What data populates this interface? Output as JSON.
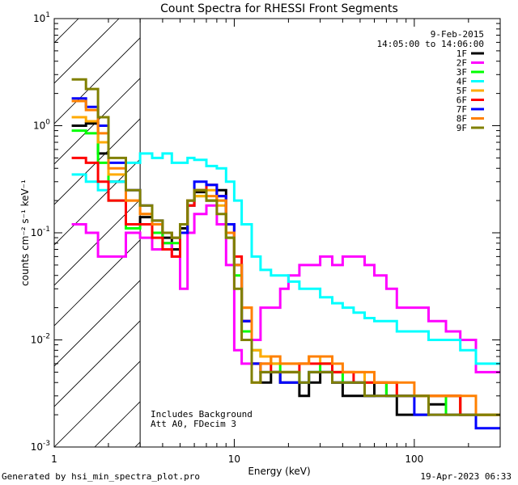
{
  "chart_data": {
    "type": "line",
    "scale": "log-log",
    "title": "Count Spectra for RHESSI Front Segments",
    "xlabel": "Energy (keV)",
    "ylabel": "counts cm⁻² s⁻¹ keV⁻¹",
    "xlim": [
      1.0,
      300
    ],
    "ylim": [
      0.001,
      10
    ],
    "x_ticks": [
      {
        "value": 1,
        "label": "1"
      },
      {
        "value": 10,
        "label": "10"
      },
      {
        "value": 100,
        "label": "100"
      }
    ],
    "y_ticks": [
      {
        "value": 0.001,
        "base": "10",
        "exp": "-3"
      },
      {
        "value": 0.01,
        "base": "10",
        "exp": "-2"
      },
      {
        "value": 0.1,
        "base": "10",
        "exp": "-1"
      },
      {
        "value": 1,
        "base": "10",
        "exp": "0"
      },
      {
        "value": 10,
        "base": "10",
        "exp": "1"
      }
    ],
    "date": "9-Feb-2015",
    "time_range": "14:05:00 to 14:06:00",
    "annotations": [
      "Includes Background",
      "Att A0, FDecim 3"
    ],
    "shaded_region": {
      "x_from": 1.0,
      "x_to": 3.0,
      "style": "diagonal-hatch"
    },
    "series": [
      {
        "name": "1F",
        "color": "#000000",
        "values": [
          1.0,
          1.05,
          0.55,
          0.3,
          0.12,
          0.14,
          0.12,
          0.09,
          0.07,
          0.11,
          0.18,
          0.24,
          0.2,
          0.25,
          0.12,
          0.05,
          0.015,
          0.006,
          0.004,
          0.005,
          0.004,
          0.004,
          0.003,
          0.004,
          0.005,
          0.004,
          0.003,
          0.003,
          0.003,
          0.004,
          0.003,
          0.002,
          0.002,
          0.0025,
          0.003,
          0.002,
          0.002
        ]
      },
      {
        "name": "2F",
        "color": "#ff00ff",
        "values": [
          0.12,
          0.1,
          0.06,
          0.06,
          0.1,
          0.09,
          0.07,
          0.08,
          0.06,
          0.03,
          0.1,
          0.15,
          0.18,
          0.12,
          0.05,
          0.008,
          0.006,
          0.01,
          0.02,
          0.02,
          0.03,
          0.04,
          0.05,
          0.05,
          0.06,
          0.05,
          0.06,
          0.06,
          0.05,
          0.04,
          0.03,
          0.02,
          0.02,
          0.015,
          0.012,
          0.01,
          0.005
        ]
      },
      {
        "name": "3F",
        "color": "#00ff00",
        "values": [
          0.9,
          0.85,
          0.45,
          0.2,
          0.11,
          0.12,
          0.1,
          0.08,
          0.08,
          0.1,
          0.2,
          0.22,
          0.2,
          0.2,
          0.09,
          0.04,
          0.012,
          0.008,
          0.007,
          0.006,
          0.005,
          0.005,
          0.004,
          0.005,
          0.006,
          0.005,
          0.004,
          0.004,
          0.004,
          0.004,
          0.003,
          0.003,
          0.003,
          0.003,
          0.002,
          0.002,
          0.002
        ]
      },
      {
        "name": "4F",
        "color": "#00ffff",
        "values": [
          0.35,
          0.3,
          0.25,
          0.3,
          0.45,
          0.55,
          0.5,
          0.55,
          0.45,
          0.45,
          0.5,
          0.48,
          0.42,
          0.4,
          0.3,
          0.2,
          0.12,
          0.06,
          0.045,
          0.04,
          0.04,
          0.035,
          0.03,
          0.03,
          0.025,
          0.022,
          0.02,
          0.018,
          0.016,
          0.015,
          0.015,
          0.012,
          0.012,
          0.01,
          0.01,
          0.008,
          0.006
        ]
      },
      {
        "name": "5F",
        "color": "#ffaa00",
        "values": [
          1.2,
          1.1,
          0.7,
          0.35,
          0.2,
          0.15,
          0.12,
          0.1,
          0.09,
          0.12,
          0.2,
          0.22,
          0.25,
          0.18,
          0.1,
          0.05,
          0.02,
          0.008,
          0.007,
          0.006,
          0.006,
          0.006,
          0.006,
          0.007,
          0.006,
          0.005,
          0.005,
          0.005,
          0.004,
          0.004,
          0.004,
          0.003,
          0.003,
          0.003,
          0.003,
          0.002,
          0.002
        ]
      },
      {
        "name": "6F",
        "color": "#ff0000",
        "values": [
          0.5,
          0.45,
          0.3,
          0.2,
          0.12,
          0.12,
          0.09,
          0.07,
          0.06,
          0.1,
          0.18,
          0.25,
          0.28,
          0.22,
          0.12,
          0.06,
          0.015,
          0.006,
          0.006,
          0.005,
          0.005,
          0.005,
          0.006,
          0.006,
          0.006,
          0.005,
          0.005,
          0.004,
          0.004,
          0.004,
          0.004,
          0.003,
          0.003,
          0.003,
          0.003,
          0.002,
          0.002
        ]
      },
      {
        "name": "7F",
        "color": "#0000ff",
        "values": [
          1.8,
          1.5,
          1.0,
          0.45,
          0.25,
          0.18,
          0.13,
          0.1,
          0.09,
          0.1,
          0.2,
          0.3,
          0.28,
          0.22,
          0.12,
          0.05,
          0.015,
          0.006,
          0.005,
          0.005,
          0.004,
          0.004,
          0.004,
          0.005,
          0.005,
          0.004,
          0.004,
          0.004,
          0.003,
          0.003,
          0.003,
          0.003,
          0.002,
          0.002,
          0.002,
          0.002,
          0.0015
        ]
      },
      {
        "name": "8F",
        "color": "#ff8000",
        "values": [
          1.7,
          1.4,
          0.85,
          0.4,
          0.2,
          0.15,
          0.12,
          0.1,
          0.09,
          0.12,
          0.2,
          0.25,
          0.22,
          0.2,
          0.1,
          0.05,
          0.02,
          0.004,
          0.006,
          0.007,
          0.006,
          0.006,
          0.006,
          0.007,
          0.007,
          0.006,
          0.005,
          0.005,
          0.005,
          0.004,
          0.004,
          0.004,
          0.003,
          0.003,
          0.003,
          0.003,
          0.002
        ]
      },
      {
        "name": "9F",
        "color": "#808000",
        "values": [
          2.7,
          2.2,
          1.2,
          0.5,
          0.25,
          0.18,
          0.13,
          0.1,
          0.09,
          0.12,
          0.2,
          0.25,
          0.2,
          0.15,
          0.09,
          0.03,
          0.01,
          0.004,
          0.005,
          0.005,
          0.005,
          0.005,
          0.004,
          0.005,
          0.005,
          0.004,
          0.004,
          0.004,
          0.003,
          0.003,
          0.003,
          0.003,
          0.003,
          0.002,
          0.002,
          0.002,
          0.002
        ]
      }
    ],
    "x_bin_edges": [
      1.25,
      1.5,
      1.75,
      2.0,
      2.5,
      3.0,
      3.5,
      4.0,
      4.5,
      5.0,
      5.5,
      6.0,
      7.0,
      8.0,
      9.0,
      10.0,
      11.0,
      12.5,
      14.0,
      16.0,
      18.0,
      20.0,
      23.0,
      26.0,
      30.0,
      35.0,
      40.0,
      46.0,
      53.0,
      60.0,
      70.0,
      80.0,
      100.0,
      120.0,
      150.0,
      180.0,
      220.0,
      300.0
    ]
  },
  "footer": {
    "generated_by": "Generated by hsi_min_spectra_plot.pro",
    "timestamp": "19-Apr-2023 06:33"
  }
}
